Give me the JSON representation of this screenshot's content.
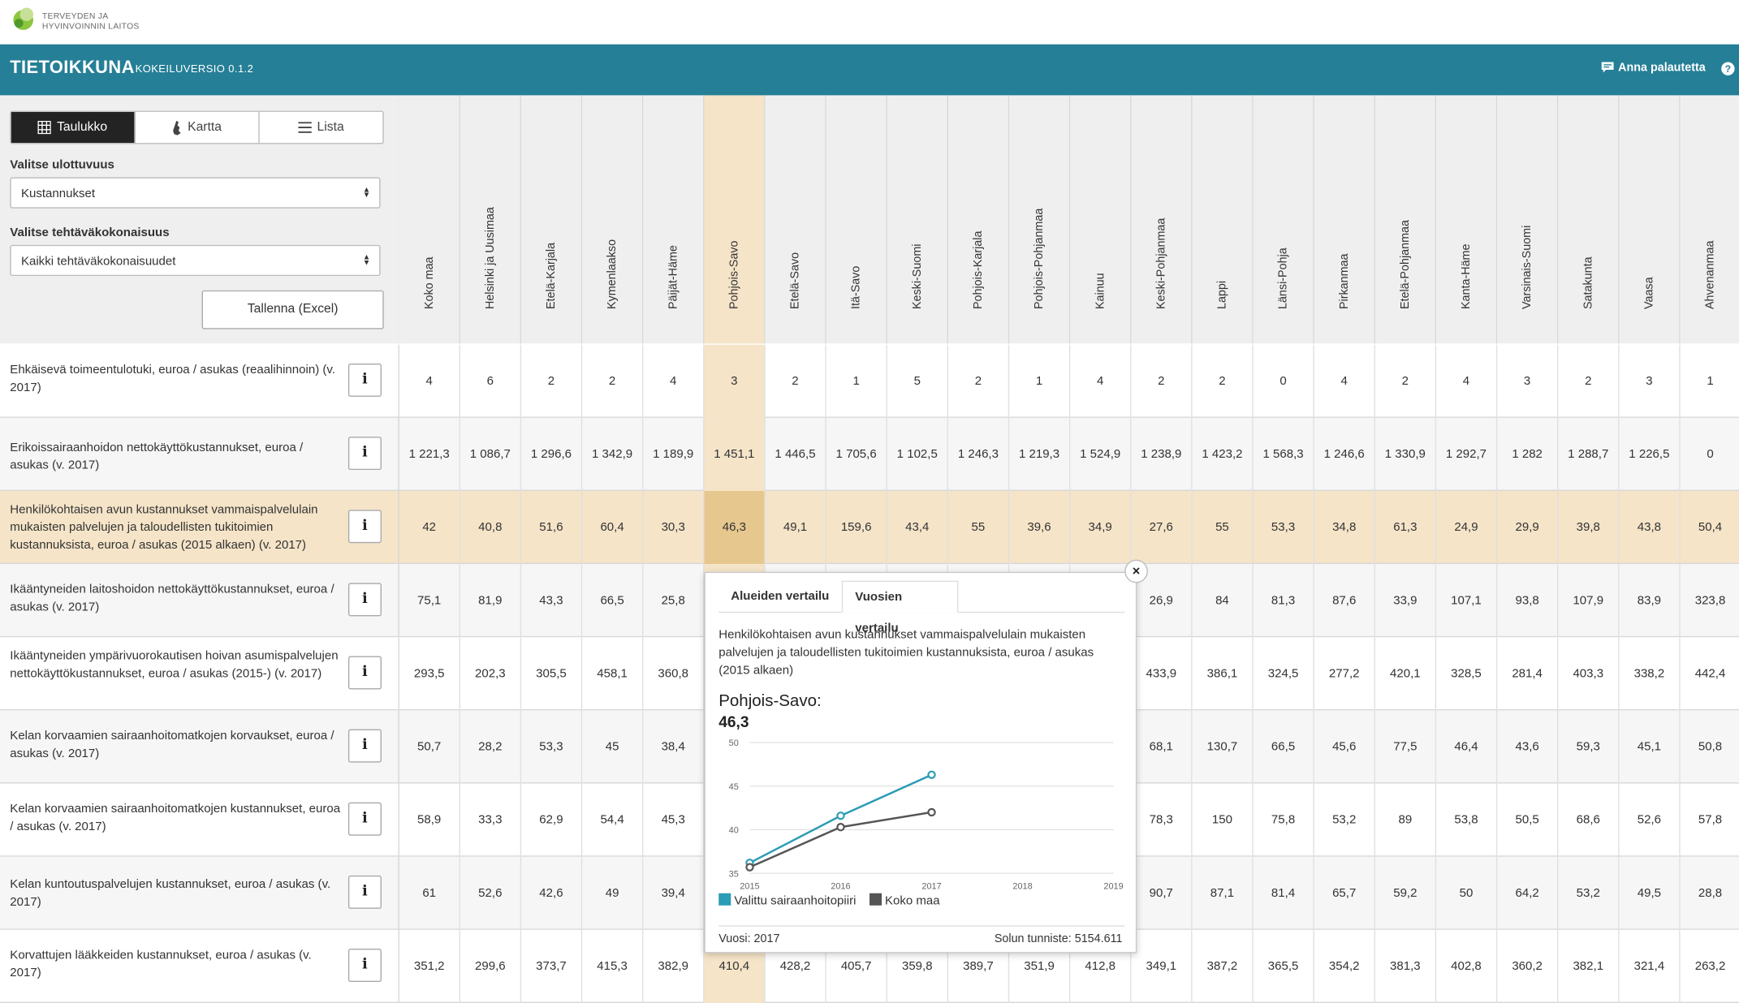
{
  "logo": {
    "line1": "TERVEYDEN JA",
    "line2": "HYVINVOINNIN LAITOS"
  },
  "header": {
    "title": "TIETOIKKUNA",
    "version": "KOKEILUVERSIO 0.1.2",
    "feedback": "Anna palautetta",
    "help": "?"
  },
  "view_toggle": {
    "table": "Taulukko",
    "map": "Kartta",
    "list": "Lista",
    "active": "table"
  },
  "filters": {
    "dimension_label": "Valitse ulottuvuus",
    "dimension_value": "Kustannukset",
    "task_label": "Valitse tehtäväkokonaisuus",
    "task_value": "Kaikki tehtäväkokonaisuudet"
  },
  "save_button": "Tallenna (Excel)",
  "columns": [
    "Koko maa",
    "Helsinki ja Uusimaa",
    "Etelä-Karjala",
    "Kymenlaakso",
    "Päijät-Häme",
    "Pohjois-Savo",
    "Etelä-Savo",
    "Itä-Savo",
    "Keski-Suomi",
    "Pohjois-Karjala",
    "Pohjois-Pohjanmaa",
    "Kainuu",
    "Keski-Pohjanmaa",
    "Lappi",
    "Länsi-Pohja",
    "Pirkanmaa",
    "Etelä-Pohjanmaa",
    "Kanta-Häme",
    "Varsinais-Suomi",
    "Satakunta",
    "Vaasa",
    "Ahvenanmaa"
  ],
  "selected_column": 5,
  "selected_row": 2,
  "rows": [
    {
      "label": "Ehkäisevä toimeentulotuki, euroa / asukas (reaalihinnoin) (v. 2017)",
      "values": [
        "4",
        "6",
        "2",
        "2",
        "4",
        "3",
        "2",
        "1",
        "5",
        "2",
        "1",
        "4",
        "2",
        "2",
        "0",
        "4",
        "2",
        "4",
        "3",
        "2",
        "3",
        "1"
      ]
    },
    {
      "label": "Erikoissairaanhoidon nettokäyttökustannukset, euroa / asukas (v. 2017)",
      "values": [
        "1 221,3",
        "1 086,7",
        "1 296,6",
        "1 342,9",
        "1 189,9",
        "1 451,1",
        "1 446,5",
        "1 705,6",
        "1 102,5",
        "1 246,3",
        "1 219,3",
        "1 524,9",
        "1 238,9",
        "1 423,2",
        "1 568,3",
        "1 246,6",
        "1 330,9",
        "1 292,7",
        "1 282",
        "1 288,7",
        "1 226,5",
        "0"
      ]
    },
    {
      "label": "Henkilökohtaisen avun kustannukset vammaispalvelulain mukaisten palvelujen ja taloudellisten tukitoimien kustannuksista, euroa / asukas (2015 alkaen) (v. 2017)",
      "values": [
        "42",
        "40,8",
        "51,6",
        "60,4",
        "30,3",
        "46,3",
        "49,1",
        "159,6",
        "43,4",
        "55",
        "39,6",
        "34,9",
        "27,6",
        "55",
        "53,3",
        "34,8",
        "61,3",
        "24,9",
        "29,9",
        "39,8",
        "43,8",
        "50,4"
      ]
    },
    {
      "label": "Ikääntyneiden laitoshoidon nettokäyttökustannukset, euroa / asukas (v. 2017)",
      "values": [
        "75,1",
        "81,9",
        "43,3",
        "66,5",
        "25,8",
        "",
        "",
        "",
        "",
        "",
        "",
        "",
        "26,9",
        "84",
        "81,3",
        "87,6",
        "33,9",
        "107,1",
        "93,8",
        "107,9",
        "83,9",
        "323,8"
      ]
    },
    {
      "label": "Ikääntyneiden ympärivuorokautisen hoivan asumispalvelujen nettokäyttökustannukset, euroa / asukas (2015-) (v. 2017)",
      "values": [
        "293,5",
        "202,3",
        "305,5",
        "458,1",
        "360,8",
        "",
        "",
        "",
        "",
        "",
        "",
        "",
        "433,9",
        "386,1",
        "324,5",
        "277,2",
        "420,1",
        "328,5",
        "281,4",
        "403,3",
        "338,2",
        "442,4"
      ]
    },
    {
      "label": "Kelan korvaamien sairaanhoitomatkojen korvaukset, euroa / asukas (v. 2017)",
      "values": [
        "50,7",
        "28,2",
        "53,3",
        "45",
        "38,4",
        "",
        "",
        "",
        "",
        "",
        "",
        "",
        "68,1",
        "130,7",
        "66,5",
        "45,6",
        "77,5",
        "46,4",
        "43,6",
        "59,3",
        "45,1",
        "50,8"
      ]
    },
    {
      "label": "Kelan korvaamien sairaanhoitomatkojen kustannukset, euroa / asukas (v. 2017)",
      "values": [
        "58,9",
        "33,3",
        "62,9",
        "54,4",
        "45,3",
        "",
        "",
        "",
        "",
        "",
        "",
        "",
        "78,3",
        "150",
        "75,8",
        "53,2",
        "89",
        "53,8",
        "50,5",
        "68,6",
        "52,6",
        "57,8"
      ]
    },
    {
      "label": "Kelan kuntoutuspalvelujen kustannukset, euroa / asukas (v. 2017)",
      "values": [
        "61",
        "52,6",
        "42,6",
        "49",
        "39,4",
        "",
        "",
        "",
        "",
        "",
        "",
        "",
        "90,7",
        "87,1",
        "81,4",
        "65,7",
        "59,2",
        "50",
        "64,2",
        "53,2",
        "49,5",
        "28,8"
      ]
    },
    {
      "label": "Korvattujen lääkkeiden kustannukset, euroa / asukas (v. 2017)",
      "values": [
        "351,2",
        "299,6",
        "373,7",
        "415,3",
        "382,9",
        "410,4",
        "428,2",
        "405,7",
        "359,8",
        "389,7",
        "351,9",
        "412,8",
        "349,1",
        "387,2",
        "365,5",
        "354,2",
        "381,3",
        "402,8",
        "360,2",
        "382,1",
        "321,4",
        "263,2"
      ]
    }
  ],
  "popup": {
    "tab_regions": "Alueiden vertailu",
    "tab_years": "Vuosien vertailu",
    "active_tab": "years",
    "close": "×",
    "description": "Henkilökohtaisen avun kustannukset vammaispalvelulain mukaisten palvelujen ja taloudellisten tukitoimien kustannuksista, euroa / asukas (2015 alkaen)",
    "region": "Pohjois-Savo:",
    "value": "46,3",
    "year_text": "Vuosi: 2017",
    "cell_id_text": "Solun tunniste: 5154.611"
  },
  "chart_data": {
    "type": "line",
    "x": [
      2015,
      2016,
      2017,
      2018,
      2019
    ],
    "xlim": [
      2015,
      2019
    ],
    "ylim": [
      35,
      50
    ],
    "y_ticks": [
      35,
      40,
      45,
      50
    ],
    "grid": true,
    "legend_position": "bottom-left",
    "series": [
      {
        "name": "Valittu sairaanhoitopiiri",
        "color": "#2a9cb5",
        "points": [
          [
            2015,
            36.2
          ],
          [
            2016,
            41.6
          ],
          [
            2017,
            46.3
          ]
        ]
      },
      {
        "name": "Koko maa",
        "color": "#555555",
        "points": [
          [
            2015,
            35.7
          ],
          [
            2016,
            40.3
          ],
          [
            2017,
            42.0
          ]
        ]
      }
    ]
  },
  "colors": {
    "header_bg": "#257f96",
    "selection": "#f5e4c8",
    "selected_cell": "#e6c78e"
  }
}
